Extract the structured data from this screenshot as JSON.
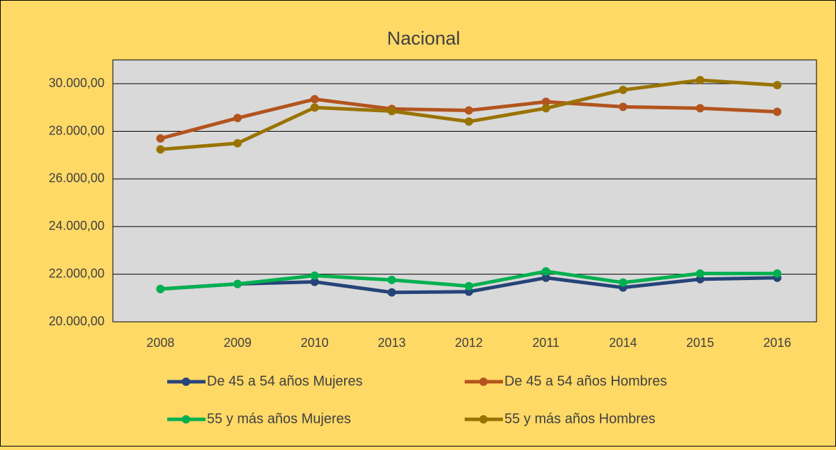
{
  "chart_data": {
    "type": "line",
    "title": "Nacional",
    "categories": [
      "2008",
      "2009",
      "2010",
      "2013",
      "2012",
      "2011",
      "2014",
      "2015",
      "2016"
    ],
    "series": [
      {
        "name": "De 45 a 54 años Mujeres",
        "color": "#264478",
        "values": [
          21380,
          21590,
          21680,
          21235,
          21265,
          21850,
          21440,
          21790,
          21850
        ]
      },
      {
        "name": "De 45 a 54 años Hombres",
        "color": "#b3541e",
        "values": [
          27700,
          28560,
          29350,
          28940,
          28880,
          29240,
          29030,
          28970,
          28820
        ]
      },
      {
        "name": "55 y más años Mujeres",
        "color": "#00b050",
        "values": [
          21380,
          21590,
          21940,
          21760,
          21500,
          22120,
          21650,
          22030,
          22030
        ]
      },
      {
        "name": "55 y más años Hombres",
        "color": "#997300",
        "values": [
          27240,
          27500,
          29000,
          28850,
          28410,
          28970,
          29740,
          30150,
          29940
        ]
      }
    ],
    "ylim": [
      20000,
      31000
    ],
    "yticks": [
      {
        "value": 20000,
        "label": "20.000,00"
      },
      {
        "value": 22000,
        "label": "22.000,00"
      },
      {
        "value": 24000,
        "label": "24.000,00"
      },
      {
        "value": 26000,
        "label": "26.000,00"
      },
      {
        "value": 28000,
        "label": "28.000,00"
      },
      {
        "value": 30000,
        "label": "30.000,00"
      }
    ],
    "grid": true,
    "legend": "bottom"
  }
}
